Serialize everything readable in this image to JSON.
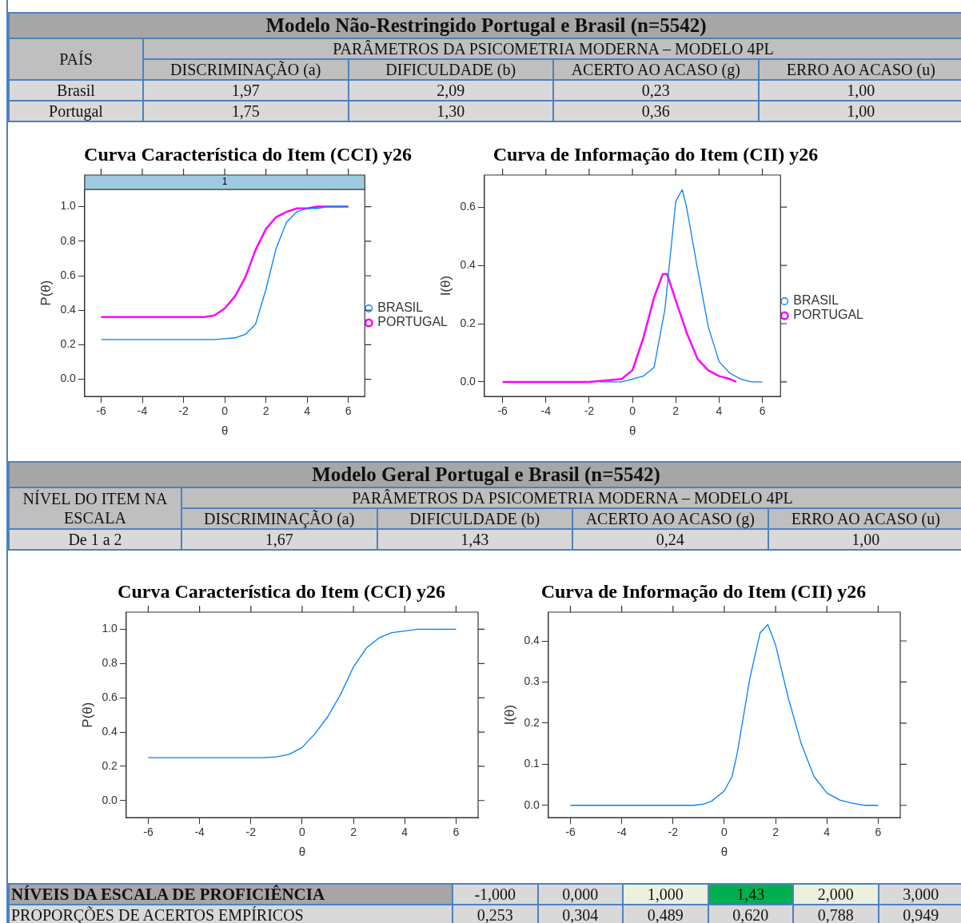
{
  "chart_data": [
    {
      "type": "other",
      "title": "Modelo Não-Restringido Portugal e Brasil (n=5542)",
      "subtitle": "PARÂMETROS DA PSICOMETRIA MODERNA – MODELO 4PL",
      "ylabel": "PAÍS",
      "categories": [
        "DISCRIMINAÇÃO (a)",
        "DIFICULDADE (b)",
        "ACERTO AO ACASO (g)",
        "ERRO AO ACASO (u)"
      ],
      "y_categories": [
        "Brasil",
        "Portugal"
      ],
      "cell_labels": [
        [
          "1,97",
          "2,09",
          "0,23",
          "1,00"
        ],
        [
          "1,75",
          "1,30",
          "0,36",
          "1,00"
        ]
      ]
    },
    {
      "type": "line",
      "title": "Curva Característica do Item (CCI) y26",
      "subtitle": "1",
      "xlabel": "θ",
      "ylabel": "P(θ)",
      "legend": "right",
      "xlim": [
        -6.8,
        6.8
      ],
      "ylim": [
        -0.1,
        1.1
      ],
      "xticks": [
        -6,
        -4,
        -2,
        0,
        2,
        4,
        6
      ],
      "yticks": [
        {
          "value": 0,
          "label": "0.0"
        },
        {
          "value": 0.2,
          "label": "0.2"
        },
        {
          "value": 0.4,
          "label": "0.4"
        },
        {
          "value": 0.6,
          "label": "0.6"
        },
        {
          "value": 0.8,
          "label": "0.8"
        },
        {
          "value": 1,
          "label": "1.0"
        }
      ],
      "x": [
        -6,
        -5.5,
        -5,
        -4.5,
        -4,
        -3.5,
        -3,
        -2.5,
        -2,
        -1.5,
        -1,
        -0.5,
        0,
        0.5,
        1,
        1.5,
        2,
        2.5,
        3,
        3.5,
        4,
        4.5,
        5,
        5.5,
        6
      ],
      "series": [
        {
          "name": "BRASIL",
          "color": "#0080ff",
          "values": [
            0.23,
            0.23,
            0.23,
            0.23,
            0.23,
            0.23,
            0.23,
            0.23,
            0.23,
            0.23,
            0.23,
            0.23,
            0.235,
            0.24,
            0.26,
            0.32,
            0.52,
            0.76,
            0.91,
            0.97,
            0.99,
            0.99,
            1,
            1,
            1
          ]
        },
        {
          "name": "PORTUGAL",
          "color": "#ff00ff",
          "values": [
            0.36,
            0.36,
            0.36,
            0.36,
            0.36,
            0.36,
            0.36,
            0.36,
            0.36,
            0.36,
            0.36,
            0.37,
            0.41,
            0.48,
            0.59,
            0.75,
            0.87,
            0.94,
            0.97,
            0.99,
            0.99,
            1,
            1,
            1,
            1
          ]
        }
      ]
    },
    {
      "type": "line",
      "title": "Curva de Informação do Item (CII) y26",
      "xlabel": "θ",
      "ylabel": "I(θ)",
      "legend": "right",
      "xlim": [
        -6.84,
        6.84
      ],
      "ylim": [
        -0.05,
        0.71
      ],
      "xticks": [
        -6,
        -4,
        -2,
        0,
        2,
        4,
        6
      ],
      "yticks": [
        {
          "value": 0,
          "label": "0.0"
        },
        {
          "value": 0.2,
          "label": "0.2"
        },
        {
          "value": 0.4,
          "label": "0.4"
        },
        {
          "value": 0.6,
          "label": "0.6"
        }
      ],
      "series": [
        {
          "name": "BRASIL",
          "color": "#0080ff",
          "x": [
            -1.5,
            -1,
            -0.5,
            0,
            0.5,
            1,
            1.5,
            2,
            2.3,
            2.5,
            3,
            3.5,
            4,
            4.5,
            5,
            5.5,
            6
          ],
          "values": [
            0,
            0,
            0,
            0.01,
            0.02,
            0.05,
            0.25,
            0.62,
            0.66,
            0.6,
            0.39,
            0.19,
            0.07,
            0.03,
            0.01,
            0,
            0
          ]
        },
        {
          "name": "PORTUGAL",
          "color": "#ff00ff",
          "x": [
            -6,
            -2,
            -0.5,
            0,
            0.5,
            1,
            1.4,
            1.6,
            2,
            2.5,
            3,
            3.5,
            4,
            4.5,
            4.8
          ],
          "values": [
            0,
            0,
            0.01,
            0.04,
            0.15,
            0.29,
            0.37,
            0.37,
            0.28,
            0.17,
            0.08,
            0.04,
            0.02,
            0.01,
            0
          ]
        }
      ]
    },
    {
      "type": "other",
      "title": "Modelo Geral Portugal e Brasil (n=5542)",
      "subtitle": "PARÂMETROS DA PSICOMETRIA MODERNA – MODELO 4PL",
      "ylabel": "NÍVEL DO ITEM NA ESCALA",
      "categories": [
        "DISCRIMINAÇÃO (a)",
        "DIFICULDADE (b)",
        "ACERTO AO ACASO (g)",
        "ERRO AO ACASO (u)"
      ],
      "y_categories": [
        "De 1 a 2"
      ],
      "cell_labels": [
        [
          "1,67",
          "1,43",
          "0,24",
          "1,00"
        ]
      ]
    },
    {
      "type": "line",
      "title": "Curva Característica do Item (CCI) y26",
      "xlabel": "θ",
      "ylabel": "P(θ)",
      "xlim": [
        -6.86,
        6.86
      ],
      "ylim": [
        -0.1,
        1.1
      ],
      "xticks": [
        -6,
        -4,
        -2,
        0,
        2,
        4,
        6
      ],
      "yticks": [
        {
          "value": 0,
          "label": "0.0"
        },
        {
          "value": 0.2,
          "label": "0.2"
        },
        {
          "value": 0.4,
          "label": "0.4"
        },
        {
          "value": 0.6,
          "label": "0.6"
        },
        {
          "value": 0.8,
          "label": "0.8"
        },
        {
          "value": 1,
          "label": "1.0"
        }
      ],
      "x": [
        -6,
        -5.5,
        -5,
        -4.5,
        -4,
        -3.5,
        -3,
        -2.5,
        -2,
        -1.5,
        -1,
        -0.5,
        0,
        0.5,
        1,
        1.5,
        2,
        2.5,
        3,
        3.5,
        4,
        4.5,
        5,
        5.5,
        6
      ],
      "series": [
        {
          "color": "#0080ff",
          "values": [
            0.25,
            0.25,
            0.25,
            0.25,
            0.25,
            0.25,
            0.25,
            0.25,
            0.25,
            0.25,
            0.255,
            0.27,
            0.31,
            0.39,
            0.49,
            0.62,
            0.78,
            0.89,
            0.95,
            0.98,
            0.99,
            1,
            1,
            1,
            1
          ]
        }
      ]
    },
    {
      "type": "line",
      "title": "Curva de Informação do Item (CII) y26",
      "xlabel": "θ",
      "ylabel": "I(θ)",
      "xlim": [
        -6.86,
        6.86
      ],
      "ylim": [
        -0.03,
        0.47
      ],
      "xticks": [
        -6,
        -4,
        -2,
        0,
        2,
        4,
        6
      ],
      "yticks": [
        {
          "value": 0,
          "label": "0.0"
        },
        {
          "value": 0.1,
          "label": "0.1"
        },
        {
          "value": 0.2,
          "label": "0.2"
        },
        {
          "value": 0.3,
          "label": "0.3"
        },
        {
          "value": 0.4,
          "label": "0.4"
        }
      ],
      "x": [
        -6,
        -1.2,
        -0.8,
        -0.5,
        0,
        0.3,
        0.5,
        1,
        1.4,
        1.7,
        2,
        2.5,
        3,
        3.5,
        4,
        4.5,
        5,
        5.5,
        6
      ],
      "series": [
        {
          "color": "#0080ff",
          "values": [
            0,
            0,
            0.003,
            0.01,
            0.035,
            0.07,
            0.125,
            0.31,
            0.42,
            0.44,
            0.39,
            0.26,
            0.15,
            0.07,
            0.03,
            0.013,
            0.005,
            0,
            0
          ]
        }
      ]
    },
    {
      "type": "other",
      "categories": [
        null,
        null,
        null,
        null,
        null,
        null
      ],
      "y_categories": [
        "NÍVEIS DA ESCALA DE PROFICIÊNCIA",
        "PROPORÇÕES DE ACERTOS EMPÍRICOS"
      ],
      "colors": [
        "#d9d9d9",
        "#d9d9d9",
        "#ebf1de",
        "#00b050",
        "#ebf1de",
        "#d9d9d9"
      ],
      "cell_labels": [
        [
          "-1,000",
          "0,000",
          "1,000",
          "1,43",
          "2,000",
          "3,000"
        ],
        [
          "0,253",
          "0,304",
          "0,489",
          "0,620",
          "0,788",
          "0,949"
        ]
      ]
    }
  ]
}
